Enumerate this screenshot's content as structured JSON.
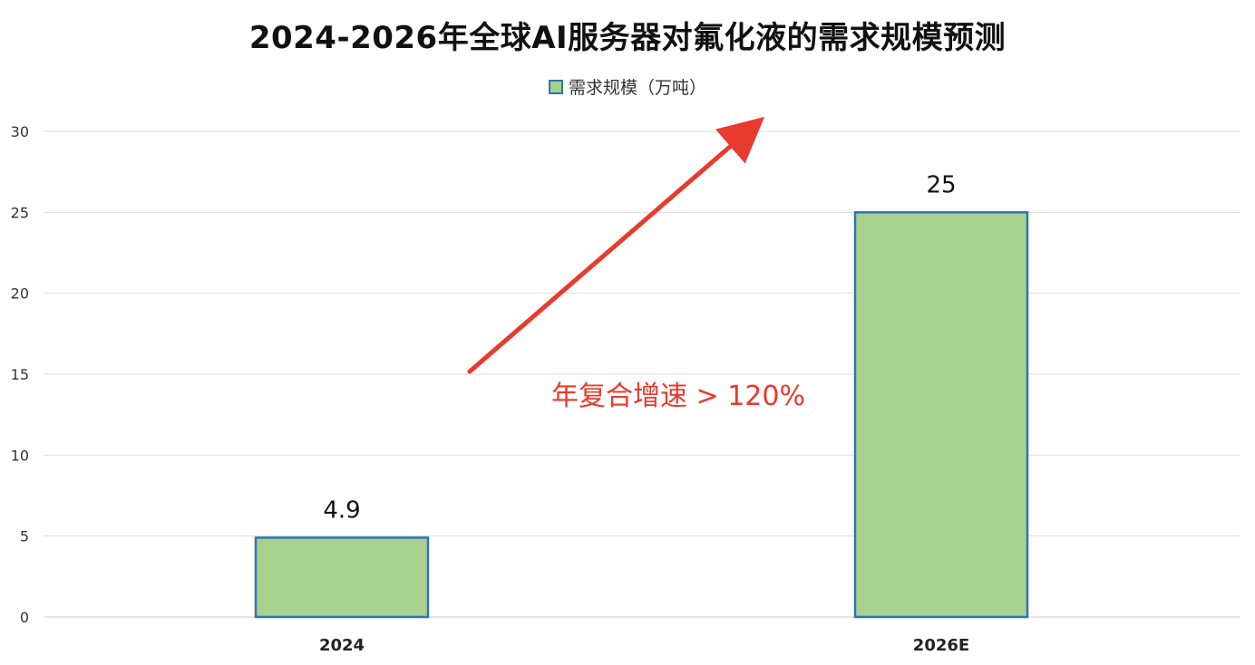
{
  "chart_data": {
    "type": "bar",
    "title": "2024-2026年全球AI服务器对氟化液的需求规模预测",
    "categories": [
      "2024",
      "2026E"
    ],
    "series": [
      {
        "name": "需求规模（万吨）",
        "values": [
          4.9,
          25
        ]
      }
    ],
    "data_labels": [
      "4.9",
      "25"
    ],
    "ylim": [
      0,
      30
    ],
    "yticks": [
      0,
      5,
      10,
      15,
      20,
      25,
      30
    ],
    "ytick_labels": [
      "0",
      "5",
      "10",
      "15",
      "20",
      "25",
      "30"
    ],
    "xlabel": "",
    "ylabel": "",
    "grid": true,
    "legend_position": "top-center",
    "annotation": {
      "text": "年复合增速 > 120%",
      "color": "#e83a2e"
    },
    "colors": {
      "bar_fill": "#a9d18e",
      "bar_border": "#2e75b6",
      "grid": "#d9dde6",
      "arrow": "#e83a2e"
    }
  }
}
